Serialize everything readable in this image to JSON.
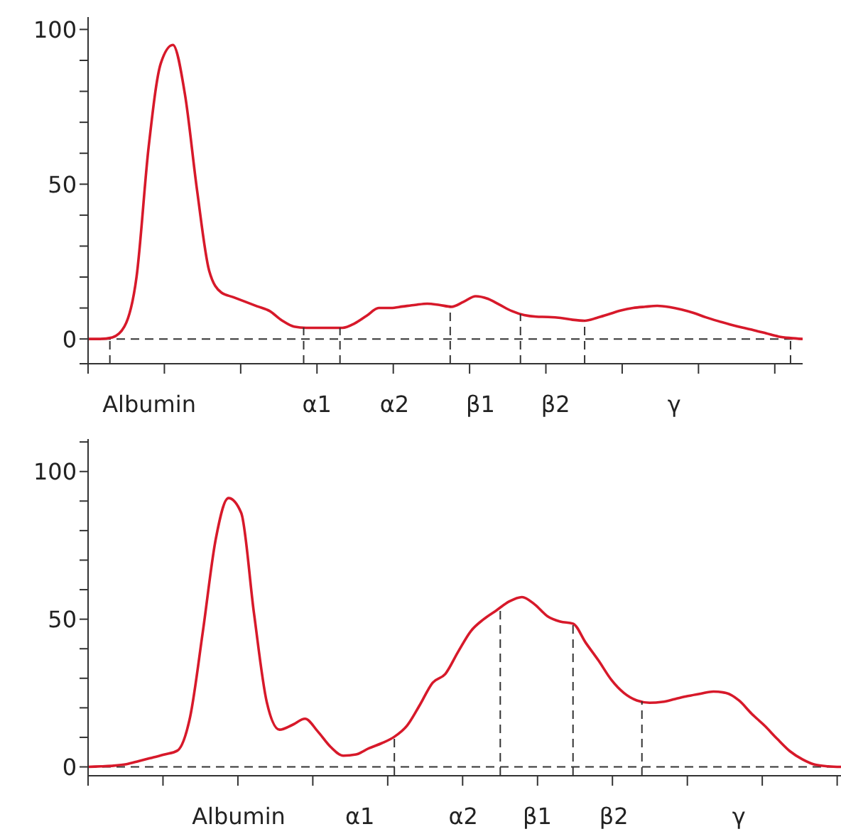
{
  "chart_data": [
    {
      "type": "line",
      "categories": [
        null,
        null,
        null,
        null,
        null,
        null,
        null,
        null,
        null,
        null,
        null,
        null,
        null,
        null,
        null,
        null,
        null,
        null,
        null,
        null,
        null,
        null,
        null,
        null,
        null,
        null,
        null,
        null,
        null,
        null,
        null,
        null,
        null,
        null,
        null,
        null,
        null,
        null,
        null,
        null,
        null,
        null,
        null,
        null,
        null,
        null,
        null,
        null,
        null,
        null,
        null,
        null,
        null,
        null,
        null,
        null,
        null,
        null,
        null,
        null
      ],
      "series": [
        {
          "color": "#d7192a",
          "values": [
            0,
            0,
            0.5,
            4,
            20,
            62,
            89,
            95,
            79,
            48,
            22,
            15,
            13.5,
            12,
            10.5,
            9,
            6,
            4,
            3.6,
            3.6,
            3.6,
            3.6,
            5,
            7.5,
            10,
            10,
            10.5,
            11,
            11.4,
            11,
            10.4,
            12,
            13.8,
            13,
            11,
            9,
            7.7,
            7.2,
            7.1,
            6.8,
            6.2,
            5.9,
            6.8,
            8,
            9.2,
            10,
            10.4,
            10.7,
            10.3,
            9.5,
            8.4,
            7,
            5.8,
            4.7,
            3.7,
            2.8,
            1.8,
            0.8,
            0.3,
            0
          ]
        }
      ],
      "ylim": [
        -8,
        104
      ],
      "yticks": [
        {
          "value": -8,
          "label": null
        },
        0,
        {
          "value": 10,
          "label": null
        },
        {
          "value": 20,
          "label": null
        },
        {
          "value": 30,
          "label": null
        },
        {
          "value": 40,
          "label": null
        },
        50,
        {
          "value": 60,
          "label": null
        },
        {
          "value": 70,
          "label": null
        },
        {
          "value": 80,
          "label": null
        },
        {
          "value": 90,
          "label": null
        },
        100
      ],
      "marker": "none",
      "ref_lines": [
        {
          "axis": "y",
          "value": 0,
          "line_style": "dashed"
        }
      ],
      "annotations": [
        "Albumin",
        "α1",
        "α2",
        "β1",
        "β2",
        "γ"
      ]
    },
    {
      "type": "line",
      "categories": [
        null,
        null,
        null,
        null,
        null,
        null,
        null,
        null,
        null,
        null,
        null,
        null,
        null,
        null,
        null,
        null,
        null,
        null,
        null,
        null,
        null,
        null,
        null,
        null,
        null,
        null,
        null,
        null,
        null,
        null,
        null,
        null,
        null,
        null,
        null,
        null,
        null,
        null,
        null,
        null,
        null,
        null,
        null,
        null,
        null,
        null,
        null,
        null,
        null,
        null,
        null,
        null,
        null,
        null,
        null,
        null,
        null,
        null,
        null,
        null
      ],
      "series": [
        {
          "color": "#d7192a",
          "values": [
            0,
            0.2,
            0.4,
            0.9,
            2,
            3.1,
            4.2,
            5.5,
            17,
            46,
            77,
            91,
            86,
            52,
            22,
            12.6,
            14.2,
            16.3,
            12,
            6.8,
            3.8,
            4.2,
            6.3,
            8,
            10.2,
            14,
            21,
            28.5,
            31.5,
            39,
            46,
            50,
            53,
            56,
            57.5,
            55,
            51,
            49.2,
            48.5,
            42,
            36,
            29.5,
            25,
            22.5,
            21.7,
            22,
            23,
            24,
            24.8,
            25.5,
            25,
            22.5,
            18,
            14,
            9.5,
            5.3,
            2.5,
            0.7,
            0.2,
            0
          ]
        }
      ],
      "ylim": [
        -3,
        111
      ],
      "yticks": [
        0,
        {
          "value": 10,
          "label": null
        },
        {
          "value": 20,
          "label": null
        },
        {
          "value": 30,
          "label": null
        },
        {
          "value": 40,
          "label": null
        },
        50,
        {
          "value": 60,
          "label": null
        },
        {
          "value": 70,
          "label": null
        },
        {
          "value": 80,
          "label": null
        },
        {
          "value": 90,
          "label": null
        },
        100,
        {
          "value": 110,
          "label": null
        }
      ],
      "marker": "none",
      "ref_lines": [
        {
          "axis": "y",
          "value": 0,
          "line_style": "dashed"
        }
      ],
      "annotations": [
        "Albumin",
        "α1",
        "α2",
        "β1",
        "β2",
        "γ"
      ]
    }
  ]
}
